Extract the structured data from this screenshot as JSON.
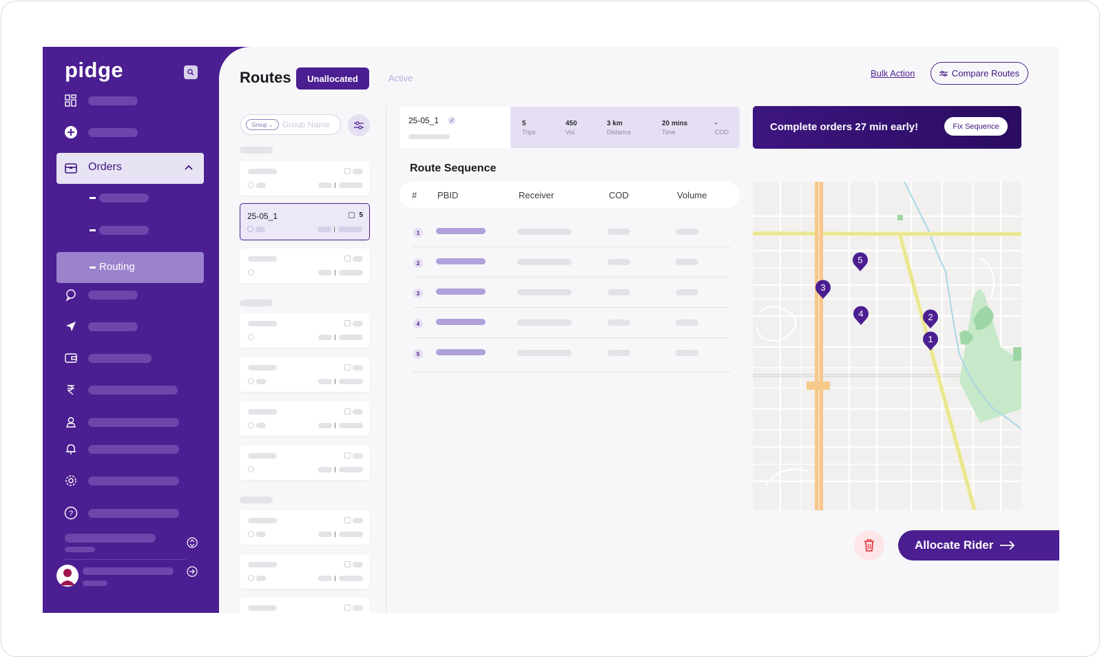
{
  "app": {
    "logo": "pidge"
  },
  "sidebar": {
    "orders_label": "Orders",
    "routing_label": "Routing",
    "icons": [
      "dashboard-icon",
      "add-icon",
      "orders-icon",
      "support-icon",
      "navigation-icon",
      "wallet-icon",
      "rupee-icon",
      "location-user-icon",
      "bell-icon",
      "settings-icon",
      "help-icon",
      "chevron-up-icon",
      "logout-icon"
    ]
  },
  "header": {
    "title": "Routes",
    "tabs": [
      {
        "label": "Unallocated",
        "active": true
      },
      {
        "label": "Active",
        "active": false
      }
    ],
    "bulk_action": "Bulk Action",
    "compare_routes": "Compare Routes"
  },
  "search": {
    "group_chip": "Group",
    "placeholder": "Group Name"
  },
  "route_list": {
    "selected_name": "25-05_1",
    "selected_count": "5"
  },
  "route_summary": {
    "name": "25-05_1",
    "stats": [
      {
        "value": "5",
        "label": "Trips"
      },
      {
        "value": "450",
        "label": "Vol."
      },
      {
        "value": "3 km",
        "label": "Distance"
      },
      {
        "value": "20 mins",
        "label": "Time"
      },
      {
        "value": "-",
        "label": "COD"
      }
    ]
  },
  "promo": {
    "message": "Complete orders 27 min early!",
    "button": "Fix Sequence"
  },
  "sequence": {
    "title": "Route Sequence",
    "columns": [
      "#",
      "PBID",
      "Receiver",
      "COD",
      "Volume"
    ],
    "rows": [
      "1",
      "2",
      "3",
      "4",
      "5"
    ]
  },
  "map": {
    "pins": [
      "1",
      "2",
      "3",
      "4",
      "5"
    ]
  },
  "actions": {
    "allocate": "Allocate Rider"
  },
  "colors": {
    "brand": "#4b1e91",
    "accent_light": "#e6dff4"
  }
}
